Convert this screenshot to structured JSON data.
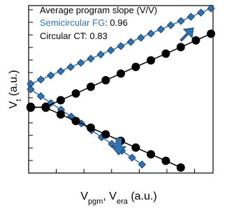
{
  "chart_data": {
    "type": "scatter-line",
    "x_label": [
      "V",
      "pgm",
      ", V",
      "era",
      " (a.u.)"
    ],
    "y_label": [
      "V",
      "t",
      " (a.u.)"
    ],
    "legend_title": "Average program slope (V/V)",
    "xlim": [
      0,
      10
    ],
    "ylim": [
      0,
      10
    ],
    "xticks": [
      1.5,
      3,
      4.5,
      6,
      7.5,
      9
    ],
    "yticks": [
      0.75,
      1.5,
      2.25,
      3,
      3.75,
      4.5,
      5.25,
      6,
      6.75,
      7.5,
      8.25,
      9,
      9.75
    ],
    "series": [
      {
        "name": "Semicircular FG",
        "slope": 0.96,
        "slope_label": ": 0.96",
        "color": "#2e75b6",
        "marker": "diamond",
        "curves": [
          {
            "x": [
              0.11,
              0.66,
              1.2,
              1.74,
              2.28,
              2.83,
              3.37,
              3.91,
              4.46,
              5.0,
              5.54,
              6.09,
              6.63,
              7.17,
              7.71,
              8.26,
              8.8,
              9.34,
              9.89
            ],
            "y": [
              5.33,
              5.58,
              5.83,
              6.08,
              6.33,
              6.58,
              6.83,
              7.08,
              7.33,
              7.58,
              7.83,
              8.08,
              8.33,
              8.58,
              8.83,
              9.08,
              9.33,
              9.58,
              9.83
            ]
          },
          {
            "x": [
              0.11,
              0.66,
              1.21,
              1.76,
              2.31,
              2.86,
              3.41,
              3.96,
              4.51,
              5.06,
              5.61,
              6.15
            ],
            "y": [
              5.0,
              4.59,
              4.18,
              3.78,
              3.37,
              2.96,
              2.55,
              2.14,
              1.74,
              1.33,
              0.92,
              0.51
            ]
          }
        ]
      },
      {
        "name": "Circular CT",
        "slope": 0.83,
        "slope_label": ": 0.83",
        "color": "#000000",
        "marker": "circle",
        "curves": [
          {
            "x": [
              0.11,
              0.93,
              1.74,
              2.56,
              3.37,
              4.18,
              5.0,
              5.81,
              6.63,
              7.44,
              8.25,
              9.07,
              9.89
            ],
            "y": [
              3.9,
              3.96,
              4.35,
              4.75,
              5.15,
              5.54,
              5.94,
              6.34,
              6.73,
              7.13,
              7.52,
              7.92,
              8.32
            ]
          },
          {
            "x": [
              0.11,
              0.93,
              1.74,
              2.56,
              3.37,
              4.18,
              5.0,
              5.81,
              6.63,
              7.44,
              8.25
            ],
            "y": [
              3.96,
              3.9,
              3.5,
              3.11,
              2.71,
              2.31,
              1.92,
              1.52,
              1.12,
              0.73,
              0.33
            ]
          }
        ]
      }
    ]
  }
}
